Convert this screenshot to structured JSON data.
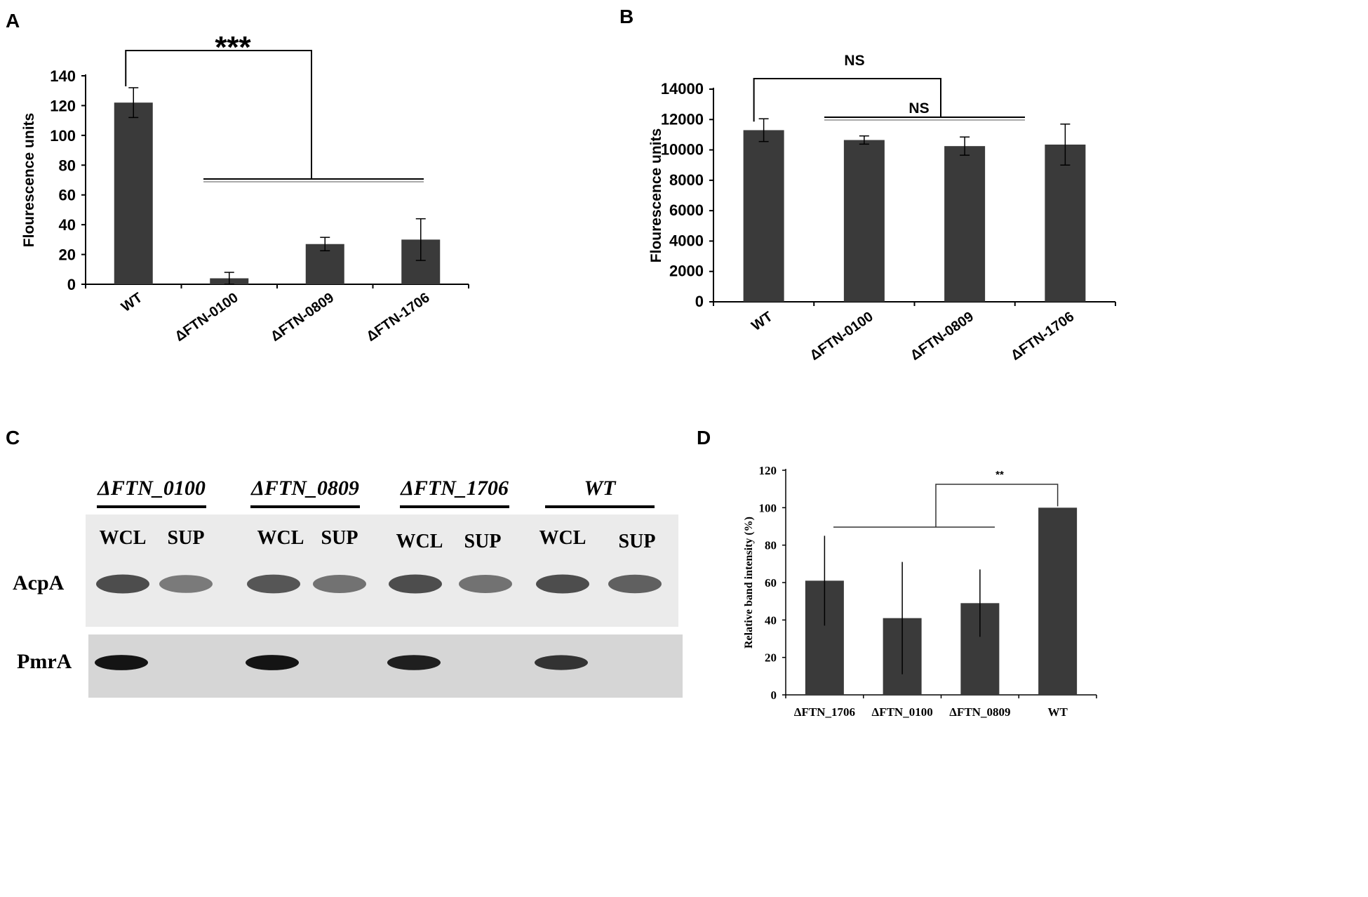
{
  "panels": {
    "a": {
      "letter": "A"
    },
    "b": {
      "letter": "B"
    },
    "c": {
      "letter": "C"
    },
    "d": {
      "letter": "D"
    }
  },
  "colors": {
    "bar": "#3a3a3a",
    "axis": "#000000"
  },
  "chart_data": [
    {
      "type": "bar",
      "panel": "A",
      "categories": [
        "WT",
        "ΔFTN-0100",
        "ΔFTN-0809",
        "ΔFTN-1706"
      ],
      "values": [
        122,
        4,
        27,
        30
      ],
      "errors": [
        10,
        4,
        4.5,
        14
      ],
      "ylabel": "Flourescence units",
      "ylim": [
        0,
        140
      ],
      "yticks": [
        0,
        20,
        40,
        60,
        80,
        100,
        120,
        140
      ],
      "significance": [
        {
          "label": "***",
          "from": "WT",
          "to": [
            "ΔFTN-0100",
            "ΔFTN-0809",
            "ΔFTN-1706"
          ]
        }
      ]
    },
    {
      "type": "bar",
      "panel": "B",
      "categories": [
        "WT",
        "ΔFTN-0100",
        "ΔFTN-0809",
        "ΔFTN-1706"
      ],
      "values": [
        11300,
        10650,
        10250,
        10350
      ],
      "errors": [
        750,
        270,
        600,
        1350
      ],
      "ylabel": "Flourescence units",
      "ylim": [
        0,
        14000
      ],
      "yticks": [
        0,
        2000,
        4000,
        6000,
        8000,
        10000,
        12000,
        14000
      ],
      "significance": [
        {
          "label": "NS",
          "from": "WT",
          "to": [
            "ΔFTN-0809"
          ]
        },
        {
          "label": "NS",
          "from": "ΔFTN-0100",
          "to": [
            "ΔFTN-1706"
          ]
        }
      ]
    },
    {
      "type": "bar",
      "panel": "D",
      "categories": [
        "ΔFTN_1706",
        "ΔFTN_0100",
        "ΔFTN_0809",
        "WT"
      ],
      "values": [
        61,
        41,
        49,
        100
      ],
      "errors": [
        24,
        30,
        18,
        0
      ],
      "ylabel": "Relative band intensity (%)",
      "ylim": [
        0,
        120
      ],
      "yticks": [
        0,
        20,
        40,
        60,
        80,
        100,
        120
      ],
      "significance": [
        {
          "label": "**",
          "from": "WT",
          "to": [
            "ΔFTN_1706",
            "ΔFTN_0100",
            "ΔFTN_0809"
          ]
        }
      ]
    }
  ],
  "blot": {
    "strains": [
      "ΔFTN_0100",
      "ΔFTN_0809",
      "ΔFTN_1706",
      "WT"
    ],
    "lanes": [
      "WCL",
      "SUP",
      "WCL",
      "SUP",
      "WCL",
      "SUP",
      "WCL",
      "SUP"
    ],
    "proteins": [
      "AcpA",
      "PmrA"
    ],
    "band_intensity": {
      "AcpA": [
        0.85,
        0.6,
        0.8,
        0.65,
        0.85,
        0.65,
        0.85,
        0.75
      ],
      "PmrA": [
        0.95,
        0,
        0.95,
        0,
        0.9,
        0,
        0.8,
        0
      ]
    }
  }
}
